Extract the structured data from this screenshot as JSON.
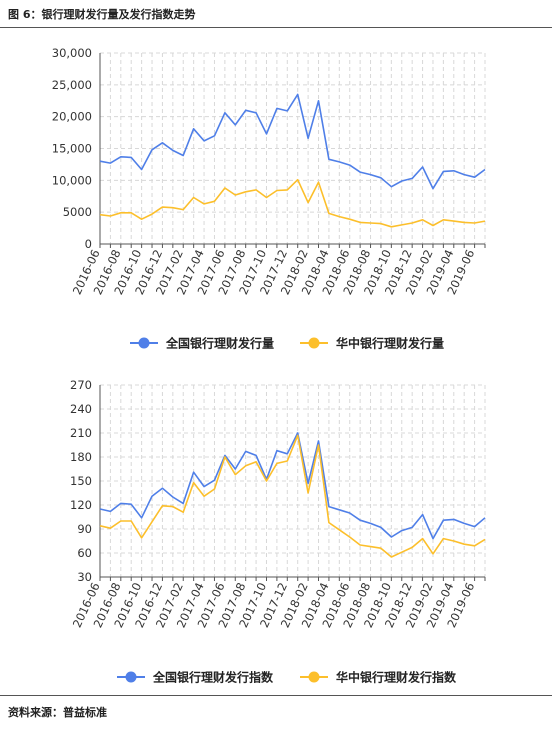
{
  "figure": {
    "title": "图 6：银行理财发行量及发行指数走势",
    "source": "资料来源：普益标准"
  },
  "colors": {
    "national": "#4f7fe8",
    "central": "#fcbf2b",
    "grid": "#d8d8d8",
    "axis": "#555555"
  },
  "chart_data": [
    {
      "type": "line",
      "title": "",
      "xlabel": "",
      "ylabel": "",
      "ylim": [
        0,
        30000
      ],
      "yticks": [
        "0",
        "5000",
        "10,000",
        "15,000",
        "20,000",
        "25,000",
        "30,000"
      ],
      "grid": true,
      "legend_position": "bottom",
      "x": [
        "2016-06",
        "2016-07",
        "2016-08",
        "2016-09",
        "2016-10",
        "2016-11",
        "2016-12",
        "2017-01",
        "2017-02",
        "2017-03",
        "2017-04",
        "2017-05",
        "2017-06",
        "2017-07",
        "2017-08",
        "2017-09",
        "2017-10",
        "2017-11",
        "2017-12",
        "2018-01",
        "2018-02",
        "2018-03",
        "2018-04",
        "2018-05",
        "2018-06",
        "2018-07",
        "2018-08",
        "2018-09",
        "2018-10",
        "2018-11",
        "2018-12",
        "2019-01",
        "2019-02",
        "2019-03",
        "2019-04",
        "2019-05",
        "2019-06",
        "2019-07"
      ],
      "x_labels": [
        "2016-06",
        "2016-08",
        "2016-10",
        "2016-12",
        "2017-02",
        "2017-04",
        "2017-06",
        "2017-08",
        "2017-10",
        "2017-12",
        "2018-02",
        "2018-04",
        "2018-06",
        "2018-08",
        "2018-10",
        "2018-12",
        "2019-02",
        "2019-04",
        "2019-06"
      ],
      "series": [
        {
          "name": "全国银行理财发行量",
          "values": [
            13000,
            12700,
            13700,
            13600,
            11700,
            14800,
            15900,
            14700,
            13900,
            18100,
            16200,
            17000,
            20600,
            18700,
            21000,
            20600,
            17300,
            21300,
            20900,
            23500,
            16600,
            22500,
            13300,
            12900,
            12400,
            11300,
            10900,
            10400,
            9000,
            9900,
            10300,
            12100,
            8700,
            11400,
            11500,
            10900,
            10500,
            11700
          ]
        },
        {
          "name": "华中银行理财发行量",
          "values": [
            4600,
            4400,
            4900,
            4900,
            3900,
            4700,
            5800,
            5700,
            5400,
            7300,
            6300,
            6700,
            8800,
            7700,
            8200,
            8500,
            7300,
            8400,
            8500,
            10100,
            6500,
            9700,
            4800,
            4300,
            3900,
            3400,
            3300,
            3200,
            2700,
            3000,
            3300,
            3800,
            2900,
            3800,
            3600,
            3400,
            3300,
            3600
          ]
        }
      ]
    },
    {
      "type": "line",
      "title": "",
      "xlabel": "",
      "ylabel": "",
      "ylim": [
        30,
        270
      ],
      "yticks": [
        "30",
        "60",
        "90",
        "120",
        "150",
        "180",
        "210",
        "240",
        "270"
      ],
      "grid": true,
      "legend_position": "bottom",
      "x": [
        "2016-06",
        "2016-07",
        "2016-08",
        "2016-09",
        "2016-10",
        "2016-11",
        "2016-12",
        "2017-01",
        "2017-02",
        "2017-03",
        "2017-04",
        "2017-05",
        "2017-06",
        "2017-07",
        "2017-08",
        "2017-09",
        "2017-10",
        "2017-11",
        "2017-12",
        "2018-01",
        "2018-02",
        "2018-03",
        "2018-04",
        "2018-05",
        "2018-06",
        "2018-07",
        "2018-08",
        "2018-09",
        "2018-10",
        "2018-11",
        "2018-12",
        "2019-01",
        "2019-02",
        "2019-03",
        "2019-04",
        "2019-05",
        "2019-06",
        "2019-07"
      ],
      "x_labels": [
        "2016-06",
        "2016-08",
        "2016-10",
        "2016-12",
        "2017-02",
        "2017-04",
        "2017-06",
        "2017-08",
        "2017-10",
        "2017-12",
        "2018-02",
        "2018-04",
        "2018-06",
        "2018-08",
        "2018-10",
        "2018-12",
        "2019-02",
        "2019-04",
        "2019-06"
      ],
      "series": [
        {
          "name": "全国银行理财发行指数",
          "values": [
            115,
            112,
            122,
            121,
            104,
            131,
            141,
            130,
            122,
            161,
            143,
            151,
            182,
            165,
            187,
            182,
            152,
            188,
            184,
            210,
            147,
            200,
            118,
            114,
            110,
            101,
            97,
            92,
            80,
            88,
            92,
            108,
            78,
            101,
            102,
            97,
            93,
            104
          ]
        },
        {
          "name": "华中银行理财发行指数",
          "values": [
            94,
            91,
            100,
            100,
            79,
            99,
            119,
            118,
            111,
            148,
            131,
            140,
            180,
            158,
            169,
            174,
            150,
            172,
            175,
            207,
            135,
            195,
            98,
            89,
            80,
            70,
            68,
            66,
            55,
            61,
            67,
            78,
            59,
            78,
            75,
            71,
            69,
            77
          ]
        }
      ]
    }
  ]
}
